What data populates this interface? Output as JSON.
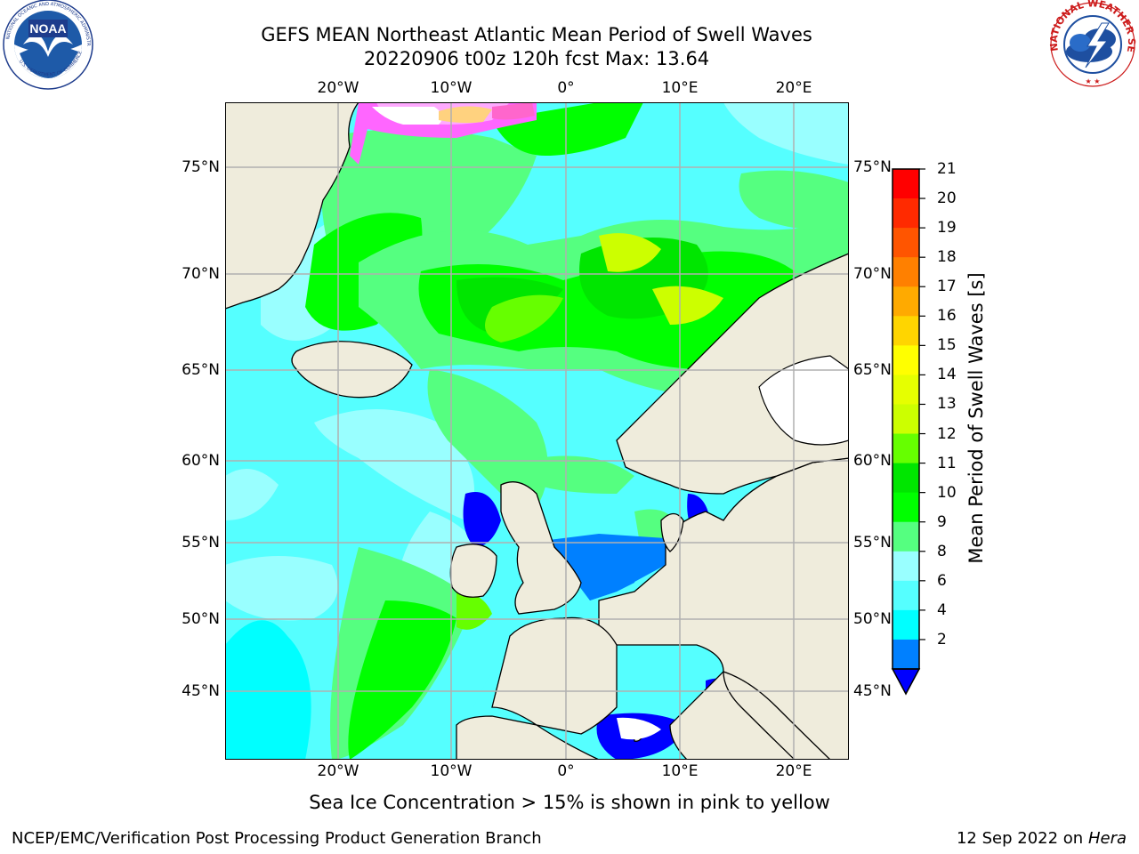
{
  "title": {
    "line1": "GEFS MEAN Northeast Atlantic Mean Period of Swell Waves",
    "line2": "20220906 t00z 120h fcst   Max: 13.64"
  },
  "map": {
    "lon_labels": [
      "20°W",
      "10°W",
      "0°",
      "10°E",
      "20°E"
    ],
    "lat_labels": [
      "75°N",
      "70°N",
      "65°N",
      "60°N",
      "55°N",
      "50°N",
      "45°N"
    ]
  },
  "colorbar": {
    "title": "Mean Period of Swell Waves [s]",
    "ticks": [
      "21",
      "20",
      "19",
      "18",
      "17",
      "16",
      "15",
      "14",
      "13",
      "12",
      "11",
      "10",
      "9",
      "8",
      "6",
      "4",
      "2"
    ],
    "colors": [
      "#ff0000",
      "#ff2a00",
      "#ff5500",
      "#ff8000",
      "#ffaa00",
      "#ffd500",
      "#ffff00",
      "#e6ff00",
      "#ccff00",
      "#66ff00",
      "#00e600",
      "#00ff00",
      "#55ff80",
      "#99ffff",
      "#55ffff",
      "#00ffff",
      "#0080ff"
    ],
    "under_color": "#0000ff"
  },
  "note": "Sea Ice Concentration > 15% is shown in pink to yellow",
  "footer": {
    "left": "NCEP/EMC/Verification Post Processing Product Generation Branch",
    "right_date": "12 Sep 2022 on",
    "right_host": "Hera"
  }
}
